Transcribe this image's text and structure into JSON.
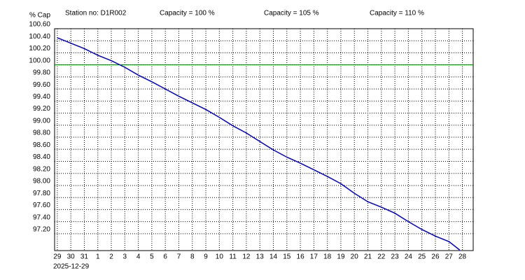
{
  "chart_data": {
    "type": "line",
    "y_axis_label": "% Cap",
    "station": "Station no: D1R002",
    "legend": [
      {
        "name": "Capacity = 100 %",
        "color": "#008000"
      },
      {
        "name": "Capacity = 105 %",
        "color": "#ff0000"
      },
      {
        "name": "Capacity = 110 %",
        "color": "#000000"
      }
    ],
    "start_date": "2025-12-29",
    "reference_line": {
      "value": 100,
      "color": "#008000"
    },
    "series": [
      {
        "color": "#0000cc",
        "x": [
          0,
          1,
          2,
          3,
          4,
          5,
          6,
          7,
          8,
          9,
          10,
          11,
          12,
          13,
          14,
          15,
          16,
          17,
          18,
          19,
          20,
          21,
          22,
          23,
          24,
          25,
          26,
          27,
          28,
          29,
          29.8
        ],
        "values": [
          100.45,
          100.36,
          100.27,
          100.16,
          100.07,
          99.96,
          99.83,
          99.72,
          99.6,
          99.48,
          99.37,
          99.26,
          99.13,
          98.99,
          98.87,
          98.73,
          98.59,
          98.47,
          98.37,
          98.26,
          98.15,
          98.03,
          97.87,
          97.73,
          97.64,
          97.54,
          97.4,
          97.27,
          97.16,
          97.07,
          96.93
        ]
      }
    ],
    "xlim": [
      -0.2,
      30.8
    ],
    "xticks": [
      {
        "value": 0,
        "label": "29"
      },
      {
        "value": 1,
        "label": "30"
      },
      {
        "value": 2,
        "label": "31"
      },
      {
        "value": 3,
        "label": "1"
      },
      {
        "value": 4,
        "label": "2"
      },
      {
        "value": 5,
        "label": "3"
      },
      {
        "value": 6,
        "label": "4"
      },
      {
        "value": 7,
        "label": "5"
      },
      {
        "value": 8,
        "label": "6"
      },
      {
        "value": 9,
        "label": "7"
      },
      {
        "value": 10,
        "label": "8"
      },
      {
        "value": 11,
        "label": "9"
      },
      {
        "value": 12,
        "label": "10"
      },
      {
        "value": 13,
        "label": "11"
      },
      {
        "value": 14,
        "label": "12"
      },
      {
        "value": 15,
        "label": "13"
      },
      {
        "value": 16,
        "label": "14"
      },
      {
        "value": 17,
        "label": "15"
      },
      {
        "value": 18,
        "label": "16"
      },
      {
        "value": 19,
        "label": "17"
      },
      {
        "value": 20,
        "label": "18"
      },
      {
        "value": 21,
        "label": "19"
      },
      {
        "value": 22,
        "label": "20"
      },
      {
        "value": 23,
        "label": "21"
      },
      {
        "value": 24,
        "label": "22"
      },
      {
        "value": 25,
        "label": "23"
      },
      {
        "value": 26,
        "label": "24"
      },
      {
        "value": 27,
        "label": "25"
      },
      {
        "value": 28,
        "label": "26"
      },
      {
        "value": 29,
        "label": "27"
      },
      {
        "value": 30,
        "label": "28"
      }
    ],
    "ylim": [
      96.92,
      100.6
    ],
    "yticks": [
      {
        "value": 97.2,
        "label": "97.20"
      },
      {
        "value": 97.4,
        "label": "97.40"
      },
      {
        "value": 97.6,
        "label": "97.60"
      },
      {
        "value": 97.8,
        "label": "97.80"
      },
      {
        "value": 98,
        "label": "98.00"
      },
      {
        "value": 98.2,
        "label": "98.20"
      },
      {
        "value": 98.4,
        "label": "98.40"
      },
      {
        "value": 98.6,
        "label": "98.60"
      },
      {
        "value": 98.8,
        "label": "98.80"
      },
      {
        "value": 99,
        "label": "99.00"
      },
      {
        "value": 99.2,
        "label": "99.20"
      },
      {
        "value": 99.4,
        "label": "99.40"
      },
      {
        "value": 99.6,
        "label": "99.60"
      },
      {
        "value": 99.8,
        "label": "99.80"
      },
      {
        "value": 100,
        "label": "100.00"
      },
      {
        "value": 100.2,
        "label": "100.20"
      },
      {
        "value": 100.4,
        "label": "100.40"
      },
      {
        "value": 100.6,
        "label": "100.60"
      }
    ],
    "grid": true
  }
}
